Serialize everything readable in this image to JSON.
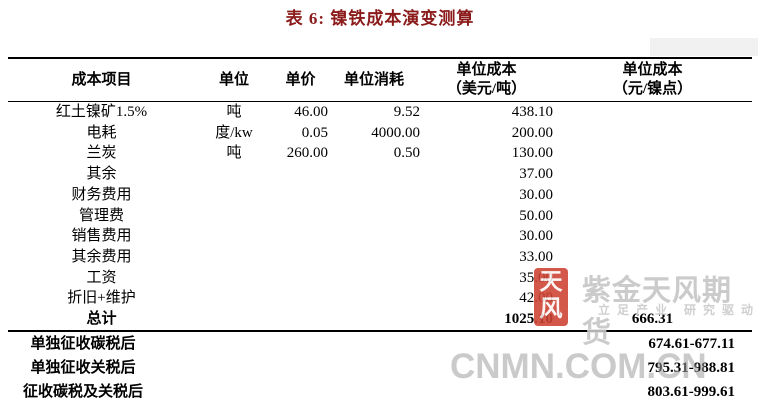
{
  "title": "表 6: 镍铁成本演变测算",
  "table": {
    "headers": [
      {
        "line1": "成本项目"
      },
      {
        "line1": "单位"
      },
      {
        "line1": "单价"
      },
      {
        "line1": "单位消耗"
      },
      {
        "line1": "单位成本",
        "line2": "（美元/吨）"
      },
      {
        "line1": "单位成本",
        "line2": "（元/镍点）"
      }
    ],
    "rows": [
      {
        "item": "红土镍矿1.5%",
        "unit": "吨",
        "price": "46.00",
        "consumption": "9.52",
        "cost_usd": "438.10",
        "cost_cny": ""
      },
      {
        "item": "电耗",
        "unit": "度/kw",
        "price": "0.05",
        "consumption": "4000.00",
        "cost_usd": "200.00",
        "cost_cny": ""
      },
      {
        "item": "兰炭",
        "unit": "吨",
        "price": "260.00",
        "consumption": "0.50",
        "cost_usd": "130.00",
        "cost_cny": ""
      },
      {
        "item": "其余",
        "unit": "",
        "price": "",
        "consumption": "",
        "cost_usd": "37.00",
        "cost_cny": ""
      },
      {
        "item": "财务费用",
        "unit": "",
        "price": "",
        "consumption": "",
        "cost_usd": "30.00",
        "cost_cny": ""
      },
      {
        "item": "管理费",
        "unit": "",
        "price": "",
        "consumption": "",
        "cost_usd": "50.00",
        "cost_cny": ""
      },
      {
        "item": "销售费用",
        "unit": "",
        "price": "",
        "consumption": "",
        "cost_usd": "30.00",
        "cost_cny": ""
      },
      {
        "item": "其余费用",
        "unit": "",
        "price": "",
        "consumption": "",
        "cost_usd": "33.00",
        "cost_cny": ""
      },
      {
        "item": "工资",
        "unit": "",
        "price": "",
        "consumption": "",
        "cost_usd": "35.00",
        "cost_cny": ""
      },
      {
        "item": "折旧+维护",
        "unit": "",
        "price": "",
        "consumption": "",
        "cost_usd": "42.00",
        "cost_cny": ""
      },
      {
        "item": "总计",
        "unit": "",
        "price": "",
        "consumption": "",
        "cost_usd": "1025.10",
        "cost_cny": "666.31"
      }
    ],
    "footer_rows": [
      {
        "label": "单独征收碳税后",
        "value": "674.61-677.11"
      },
      {
        "label": "单独征收关税后",
        "value": "795.31-988.81"
      },
      {
        "label": "征收碳税及关税后",
        "value": "803.61-999.61"
      }
    ]
  },
  "watermarks": {
    "logo_char_top": "天",
    "logo_char_bottom": "风",
    "brand_text": "紫金天风期货",
    "slogan_text": "立足产业 研究驱动",
    "site_text": "CNMN.COM.CN"
  },
  "colors": {
    "title_red": "#8B1A1A",
    "logo_red": "#CD4232",
    "watermark_gray": "#C6C6C6",
    "site_gray": "#9E9E9E",
    "border_black": "#000000"
  }
}
